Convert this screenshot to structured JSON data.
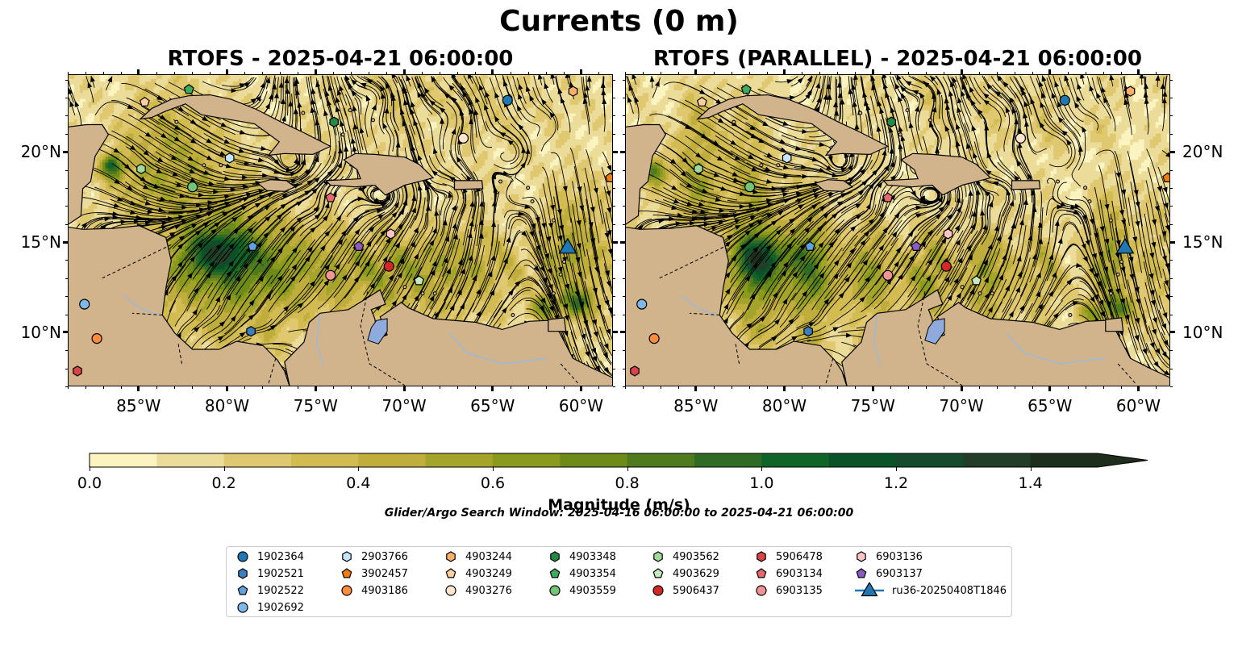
{
  "figure": {
    "title": "Currents (0 m)",
    "search_window": "Glider/Argo Search Window: 2025-04-16 06:00:00 to 2025-04-21 06:00:00"
  },
  "panels": [
    {
      "title": "RTOFS - 2025-04-21 06:00:00"
    },
    {
      "title": "RTOFS (PARALLEL) - 2025-04-21 06:00:00"
    }
  ],
  "map_extent": {
    "lon_min": -89.0,
    "lon_max": -58.2,
    "lat_min": 7.0,
    "lat_max": 24.3
  },
  "axes": {
    "lon_ticks": [
      "85°W",
      "80°W",
      "75°W",
      "70°W",
      "65°W",
      "60°W"
    ],
    "lon_values": [
      -85,
      -80,
      -75,
      -70,
      -65,
      -60
    ],
    "lat_ticks": [
      "20°N",
      "15°N",
      "10°N"
    ],
    "lat_values": [
      20,
      15,
      10
    ]
  },
  "colorbar": {
    "label": "Magnitude (m/s)",
    "min": 0.0,
    "max": 1.5,
    "step": 0.1,
    "extend": "max",
    "tick_labels": [
      "0.0",
      "0.2",
      "0.4",
      "0.6",
      "0.8",
      "1.0",
      "1.2",
      "1.4"
    ],
    "tick_values": [
      0.0,
      0.2,
      0.4,
      0.6,
      0.8,
      1.0,
      1.2,
      1.4
    ],
    "colors": [
      "#fbf4c0",
      "#ecdc9a",
      "#e0c870",
      "#d2bc52",
      "#bfad3c",
      "#a5a42a",
      "#8a9a1c",
      "#6e8a18",
      "#4f7a1e",
      "#2f6b24",
      "#116428",
      "#0a5228",
      "#164a2c",
      "#223e28",
      "#1d2e1c"
    ]
  },
  "colors": {
    "land": "#d2b48c",
    "lake": "#8faadc",
    "river": "#9fb8d6"
  },
  "platforms": [
    {
      "id": "1902364",
      "marker": "circle",
      "color": "#1f77b4",
      "lon": -64.2,
      "lat": 22.9
    },
    {
      "id": "1902521",
      "marker": "hexagon",
      "color": "#3b7fc0",
      "lon": -78.7,
      "lat": 10.1
    },
    {
      "id": "1902522",
      "marker": "pentagon",
      "color": "#5fa2dd",
      "lon": -78.6,
      "lat": 14.8
    },
    {
      "id": "1902692",
      "marker": "circle",
      "color": "#7fb8e6",
      "lon": -88.1,
      "lat": 11.6
    },
    {
      "id": "2903766",
      "marker": "hexagon",
      "color": "#c6e5fa",
      "lon": -79.9,
      "lat": 19.7
    },
    {
      "id": "3902457",
      "marker": "pentagon",
      "color": "#f07c10",
      "lon": -58.4,
      "lat": 18.6
    },
    {
      "id": "4903186",
      "marker": "circle",
      "color": "#fd8d3c",
      "lon": -87.4,
      "lat": 9.7
    },
    {
      "id": "4903244",
      "marker": "hexagon",
      "color": "#fdae6b",
      "lon": -60.5,
      "lat": 23.4
    },
    {
      "id": "4903249",
      "marker": "pentagon",
      "color": "#fdd0a2",
      "lon": -84.7,
      "lat": 22.8
    },
    {
      "id": "4903276",
      "marker": "circle",
      "color": "#fee6ce",
      "lon": -66.7,
      "lat": 20.8
    },
    {
      "id": "4903348",
      "marker": "hexagon",
      "color": "#238b45",
      "lon": -74.0,
      "lat": 21.7
    },
    {
      "id": "4903354",
      "marker": "pentagon",
      "color": "#41ab5d",
      "lon": -82.2,
      "lat": 23.5
    },
    {
      "id": "4903559",
      "marker": "circle",
      "color": "#74c476",
      "lon": -82.0,
      "lat": 18.1
    },
    {
      "id": "4903562",
      "marker": "hexagon",
      "color": "#a1d99b",
      "lon": -84.9,
      "lat": 19.1
    },
    {
      "id": "4903629",
      "marker": "pentagon",
      "color": "#c7e9c0",
      "lon": -69.2,
      "lat": 12.9
    },
    {
      "id": "5906437",
      "marker": "circle",
      "color": "#d62728",
      "lon": -70.9,
      "lat": 13.7
    },
    {
      "id": "5906478",
      "marker": "hexagon",
      "color": "#d9434b",
      "lon": -88.5,
      "lat": 7.9
    },
    {
      "id": "6903134",
      "marker": "pentagon",
      "color": "#e8686b",
      "lon": -74.2,
      "lat": 17.5
    },
    {
      "id": "6903135",
      "marker": "circle",
      "color": "#f29396",
      "lon": -74.2,
      "lat": 13.2
    },
    {
      "id": "6903136",
      "marker": "hexagon",
      "color": "#fcc5c4",
      "lon": -70.8,
      "lat": 15.5
    },
    {
      "id": "6903137",
      "marker": "pentagon",
      "color": "#8a5cbf",
      "lon": -72.6,
      "lat": 14.8
    },
    {
      "id": "ru36-20250408T1846",
      "marker": "triangle",
      "color": "#1f77b4",
      "lon": -60.8,
      "lat": 14.7
    }
  ]
}
